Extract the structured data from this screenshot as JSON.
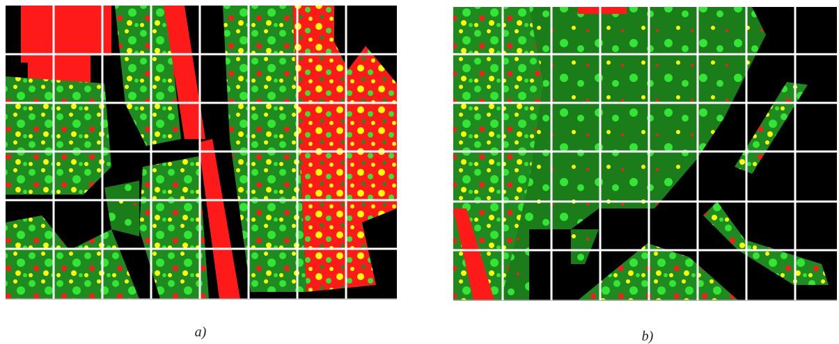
{
  "captions": {
    "a": "a)",
    "b": "b)"
  }
}
